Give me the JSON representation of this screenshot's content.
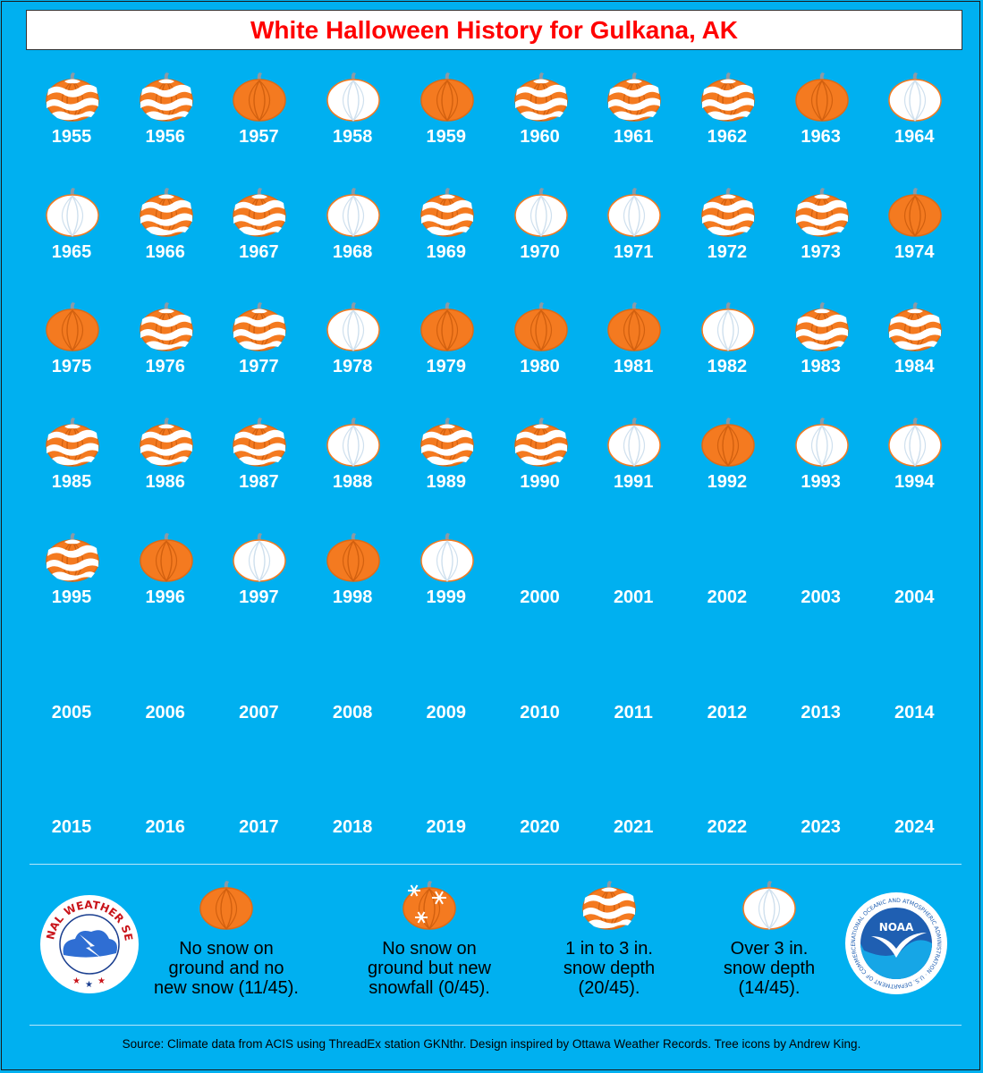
{
  "title": "White Halloween History for Gulkana, AK",
  "colors": {
    "background": "#00b0f0",
    "title_text": "#ff0000",
    "pumpkin_orange": "#f47a20",
    "pumpkin_white": "#ffffff",
    "year_text": "#ffffff"
  },
  "years": [
    {
      "year": "1955",
      "category": "1-3"
    },
    {
      "year": "1956",
      "category": "1-3"
    },
    {
      "year": "1957",
      "category": "none"
    },
    {
      "year": "1958",
      "category": "over3"
    },
    {
      "year": "1959",
      "category": "none"
    },
    {
      "year": "1960",
      "category": "1-3"
    },
    {
      "year": "1961",
      "category": "1-3"
    },
    {
      "year": "1962",
      "category": "1-3"
    },
    {
      "year": "1963",
      "category": "none"
    },
    {
      "year": "1964",
      "category": "over3"
    },
    {
      "year": "1965",
      "category": "over3"
    },
    {
      "year": "1966",
      "category": "1-3"
    },
    {
      "year": "1967",
      "category": "1-3"
    },
    {
      "year": "1968",
      "category": "over3"
    },
    {
      "year": "1969",
      "category": "1-3"
    },
    {
      "year": "1970",
      "category": "over3"
    },
    {
      "year": "1971",
      "category": "over3"
    },
    {
      "year": "1972",
      "category": "1-3"
    },
    {
      "year": "1973",
      "category": "1-3"
    },
    {
      "year": "1974",
      "category": "none"
    },
    {
      "year": "1975",
      "category": "none"
    },
    {
      "year": "1976",
      "category": "1-3"
    },
    {
      "year": "1977",
      "category": "1-3"
    },
    {
      "year": "1978",
      "category": "over3"
    },
    {
      "year": "1979",
      "category": "none"
    },
    {
      "year": "1980",
      "category": "none"
    },
    {
      "year": "1981",
      "category": "none"
    },
    {
      "year": "1982",
      "category": "over3"
    },
    {
      "year": "1983",
      "category": "1-3"
    },
    {
      "year": "1984",
      "category": "1-3"
    },
    {
      "year": "1985",
      "category": "1-3"
    },
    {
      "year": "1986",
      "category": "1-3"
    },
    {
      "year": "1987",
      "category": "1-3"
    },
    {
      "year": "1988",
      "category": "over3"
    },
    {
      "year": "1989",
      "category": "1-3"
    },
    {
      "year": "1990",
      "category": "1-3"
    },
    {
      "year": "1991",
      "category": "over3"
    },
    {
      "year": "1992",
      "category": "none"
    },
    {
      "year": "1993",
      "category": "over3"
    },
    {
      "year": "1994",
      "category": "over3"
    },
    {
      "year": "1995",
      "category": "1-3"
    },
    {
      "year": "1996",
      "category": "none"
    },
    {
      "year": "1997",
      "category": "over3"
    },
    {
      "year": "1998",
      "category": "none"
    },
    {
      "year": "1999",
      "category": "over3"
    },
    {
      "year": "2000",
      "category": ""
    },
    {
      "year": "2001",
      "category": ""
    },
    {
      "year": "2002",
      "category": ""
    },
    {
      "year": "2003",
      "category": ""
    },
    {
      "year": "2004",
      "category": ""
    },
    {
      "year": "2005",
      "category": ""
    },
    {
      "year": "2006",
      "category": ""
    },
    {
      "year": "2007",
      "category": ""
    },
    {
      "year": "2008",
      "category": ""
    },
    {
      "year": "2009",
      "category": ""
    },
    {
      "year": "2010",
      "category": ""
    },
    {
      "year": "2011",
      "category": ""
    },
    {
      "year": "2012",
      "category": ""
    },
    {
      "year": "2013",
      "category": ""
    },
    {
      "year": "2014",
      "category": ""
    },
    {
      "year": "2015",
      "category": ""
    },
    {
      "year": "2016",
      "category": ""
    },
    {
      "year": "2017",
      "category": ""
    },
    {
      "year": "2018",
      "category": ""
    },
    {
      "year": "2019",
      "category": ""
    },
    {
      "year": "2020",
      "category": ""
    },
    {
      "year": "2021",
      "category": ""
    },
    {
      "year": "2022",
      "category": ""
    },
    {
      "year": "2023",
      "category": ""
    },
    {
      "year": "2024",
      "category": ""
    }
  ],
  "legend": {
    "none": {
      "line1": "No snow on",
      "line2": "ground and no",
      "line3": "new snow (11/45)."
    },
    "newsnow": {
      "line1": "No snow on",
      "line2": "ground but new",
      "line3": "snowfall (0/45)."
    },
    "depth13": {
      "line1": "1 in to 3 in.",
      "line2": "snow depth",
      "line3": "(20/45)."
    },
    "over3": {
      "line1": "Over 3 in.",
      "line2": "snow depth",
      "line3": "(14/45)."
    }
  },
  "logos": {
    "nws_text": "NATIONAL WEATHER SERVICE",
    "noaa_text": "NOAA",
    "noaa_ring_text": "NATIONAL OCEANIC AND ATMOSPHERIC ADMINISTRATION · U.S. DEPARTMENT OF COMMERCE"
  },
  "source": "Source: Climate data from ACIS using ThreadEx station GKNthr. Design inspired by Ottawa Weather Records. Tree icons by Andrew King."
}
